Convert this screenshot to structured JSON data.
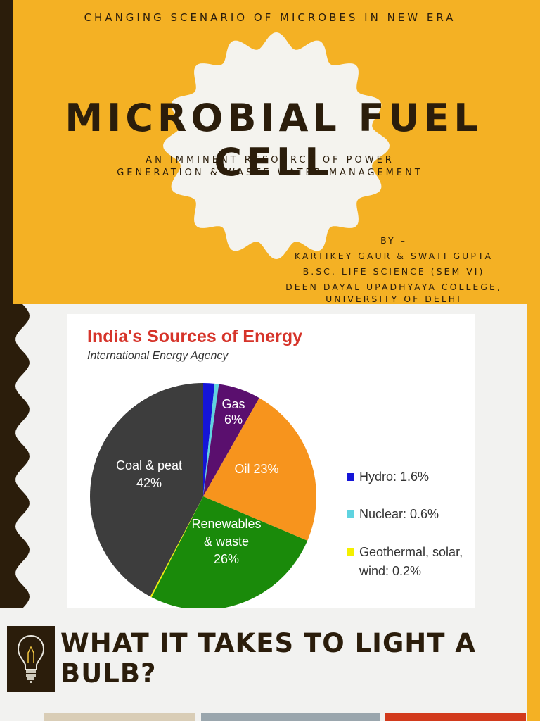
{
  "slide1": {
    "header": "CHANGING SCENARIO OF MICROBES IN NEW ERA",
    "title": "MICROBIAL FUEL CELL",
    "tagline_line1": "AN IMMINENT RESOURCE OF POWER",
    "tagline_line2": "GENERATION & WASTE WATER MANAGEMENT",
    "by_label": "BY –",
    "authors": "KARTIKEY GAUR & SWATI GUPTA",
    "course": "B.SC. LIFE SCIENCE (SEM VI)",
    "college": "DEEN DAYAL UPADHYAYA COLLEGE,",
    "university": "UNIVERSITY OF DELHI"
  },
  "chart_data": {
    "type": "pie",
    "title": "India's Sources of Energy",
    "subtitle": "International Energy Agency",
    "slices": [
      {
        "name": "Hydro",
        "value": 1.6,
        "color": "#1515d8"
      },
      {
        "name": "Nuclear",
        "value": 0.6,
        "color": "#5fd3e0"
      },
      {
        "name": "Gas",
        "value": 6,
        "color": "#5a0f6e"
      },
      {
        "name": "Oil",
        "value": 23,
        "color": "#f7941d"
      },
      {
        "name": "Renewables & waste",
        "value": 26,
        "color": "#1a8a0a"
      },
      {
        "name": "Geothermal, solar, wind",
        "value": 0.2,
        "color": "#f4f000"
      },
      {
        "name": "Coal & peat",
        "value": 42,
        "color": "#3d3d3d"
      }
    ],
    "slice_labels": {
      "gas": [
        "Gas",
        "6%"
      ],
      "oil": [
        "Oil 23%"
      ],
      "renewables": [
        "Renewables",
        "& waste",
        "26%"
      ],
      "coal": [
        "Coal & peat",
        "42%"
      ]
    },
    "legend": [
      {
        "text": [
          "Hydro: 1.6%"
        ],
        "color": "#1515d8"
      },
      {
        "text": [
          "Nuclear: 0.6%"
        ],
        "color": "#5fd3e0"
      },
      {
        "text": [
          "Geothermal, solar,",
          "wind: 0.2%"
        ],
        "color": "#f4f000"
      }
    ],
    "legend_position": "right"
  },
  "slide3": {
    "heading": "WHAT IT TAKES TO LIGHT A BULB?"
  },
  "colors": {
    "accent": "#f4b124",
    "dark": "#2b1d0b",
    "background": "#f2f2f0",
    "title_red": "#d6342a"
  }
}
